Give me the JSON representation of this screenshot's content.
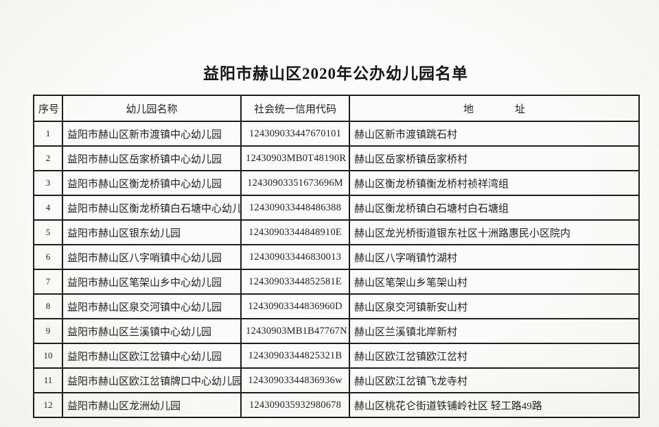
{
  "page": {
    "title": "益阳市赫山区2020年公办幼儿园名单"
  },
  "table": {
    "headers": {
      "index": "序号",
      "name": "幼儿园名称",
      "code": "社会统一信用代码",
      "address": "地　　　　址"
    },
    "rows": [
      {
        "index": "1",
        "name": "益阳市赫山区新市渡镇中心幼儿园",
        "code": "124309033447670101",
        "address": "赫山区新市渡镇跳石村"
      },
      {
        "index": "2",
        "name": "益阳市赫山区岳家桥镇中心幼儿园",
        "code": "12430903MB0T48190R",
        "address": "赫山区岳家桥镇岳家桥村"
      },
      {
        "index": "3",
        "name": "益阳市赫山区衡龙桥镇中心幼儿园",
        "code": "12430903351673696M",
        "address": "赫山区衡龙桥镇衡龙桥村祯祥湾组"
      },
      {
        "index": "4",
        "name": "益阳市赫山区衡龙桥镇白石塘中心幼儿园",
        "code": "124309033448486388",
        "address": "赫山区衡龙桥镇白石塘村白石塘组"
      },
      {
        "index": "5",
        "name": "益阳市赫山区银东幼儿园",
        "code": "12430903344848910E",
        "address": "赫山区龙光桥街道银东社区十洲路惠民小区院内"
      },
      {
        "index": "6",
        "name": "益阳市赫山区八字哨镇中心幼儿园",
        "code": "124309033446830013",
        "address": "赫山区八字哨镇竹湖村"
      },
      {
        "index": "7",
        "name": "益阳市赫山区笔架山乡中心幼儿园",
        "code": "12430903344852581E",
        "address": "赫山区笔架山乡笔架山村"
      },
      {
        "index": "8",
        "name": "益阳市赫山区泉交河镇中心幼儿园",
        "code": "12430903344836960D",
        "address": "赫山区泉交河镇新安山村"
      },
      {
        "index": "9",
        "name": "益阳市赫山区兰溪镇中心幼儿园",
        "code": "12430903MB1B47767N",
        "address": "赫山区兰溪镇北岸新村"
      },
      {
        "index": "10",
        "name": "益阳市赫山区欧江岔镇中心幼儿园",
        "code": "12430903344825321B",
        "address": "赫山区欧江岔镇欧江岔村"
      },
      {
        "index": "11",
        "name": "益阳市赫山区欧江岔镇牌口中心幼儿园",
        "code": "12430903344836936w",
        "address": "赫山区欧江岔镇飞龙寺村"
      },
      {
        "index": "12",
        "name": "益阳市赫山区龙洲幼儿园",
        "code": "124309035932980678",
        "address": "赫山区桃花仑街道铁铺岭社区 轻工路49路"
      }
    ]
  }
}
